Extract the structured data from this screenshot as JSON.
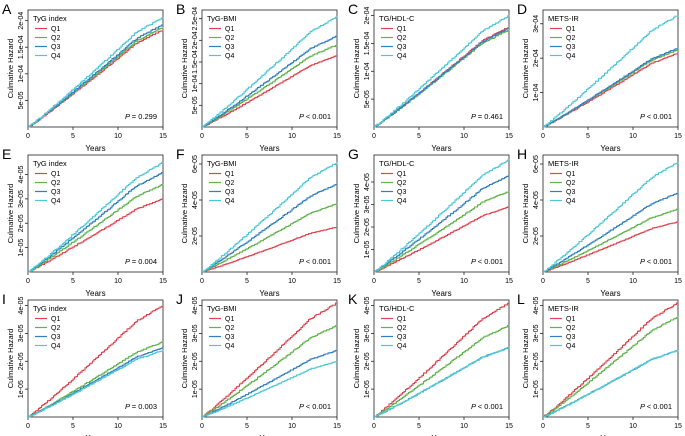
{
  "figure": {
    "x_axis_label": "Years",
    "y_axis_label": "Culmative Hazard",
    "p_prefix": "P"
  },
  "chart_data": [
    {
      "type": "line",
      "panel_label": "A",
      "title": "TyG index",
      "p_text": "= 0.299",
      "xlim": [
        0,
        15
      ],
      "xticks": [
        0,
        5,
        10,
        15
      ],
      "ylim": [
        0,
        0.00022
      ],
      "yticks": [
        "5e-05",
        "1e-04",
        "1.5e-04",
        "2e-04"
      ],
      "ytick_values": [
        5e-05,
        0.0001,
        0.00015,
        0.0002
      ],
      "series": [
        {
          "name": "Q1",
          "color": "#e0434f",
          "final": 0.000183
        },
        {
          "name": "Q2",
          "color": "#5fb34b",
          "final": 0.000188
        },
        {
          "name": "Q3",
          "color": "#2f7fc1",
          "final": 0.000193
        },
        {
          "name": "Q4",
          "color": "#4cc7d6",
          "final": 0.000207
        }
      ]
    },
    {
      "type": "line",
      "panel_label": "B",
      "title": "TyG-BMI",
      "p_text": "< 0.001",
      "xlim": [
        0,
        15
      ],
      "xticks": [
        0,
        5,
        10,
        15
      ],
      "ylim": [
        0,
        0.00027
      ],
      "yticks": [
        "5e-05",
        "1e-04",
        "1.5e-04",
        "2e-04",
        "2.5e-04"
      ],
      "ytick_values": [
        5e-05,
        0.0001,
        0.00015,
        0.0002,
        0.00025
      ],
      "series": [
        {
          "name": "Q1",
          "color": "#e0434f",
          "final": 0.000165
        },
        {
          "name": "Q2",
          "color": "#5fb34b",
          "final": 0.00019
        },
        {
          "name": "Q3",
          "color": "#2f7fc1",
          "final": 0.00021
        },
        {
          "name": "Q4",
          "color": "#4cc7d6",
          "final": 0.000255
        }
      ]
    },
    {
      "type": "line",
      "panel_label": "C",
      "title": "TG/HDL-C",
      "p_text": "= 0.461",
      "xlim": [
        0,
        15
      ],
      "xticks": [
        0,
        5,
        10,
        15
      ],
      "ylim": [
        0,
        0.00021
      ],
      "yticks": [
        "5e-05",
        "1e-04",
        "1.5e-04",
        "2e-04"
      ],
      "ytick_values": [
        5e-05,
        0.0001,
        0.00015,
        0.0002
      ],
      "series": [
        {
          "name": "Q1",
          "color": "#e0434f",
          "final": 0.00018
        },
        {
          "name": "Q2",
          "color": "#5fb34b",
          "final": 0.000175
        },
        {
          "name": "Q3",
          "color": "#2f7fc1",
          "final": 0.000178
        },
        {
          "name": "Q4",
          "color": "#4cc7d6",
          "final": 0.0002
        }
      ]
    },
    {
      "type": "line",
      "panel_label": "D",
      "title": "METS-IR",
      "p_text": "< 0.001",
      "xlim": [
        0,
        15
      ],
      "xticks": [
        0,
        5,
        10,
        15
      ],
      "ylim": [
        0,
        0.00034
      ],
      "yticks": [
        "1e-04",
        "2e-04",
        "3e-04"
      ],
      "ytick_values": [
        0.0001,
        0.0002,
        0.0003
      ],
      "series": [
        {
          "name": "Q1",
          "color": "#e0434f",
          "final": 0.000215
        },
        {
          "name": "Q2",
          "color": "#5fb34b",
          "final": 0.000225
        },
        {
          "name": "Q3",
          "color": "#2f7fc1",
          "final": 0.00023
        },
        {
          "name": "Q4",
          "color": "#4cc7d6",
          "final": 0.000325
        }
      ]
    },
    {
      "type": "line",
      "panel_label": "E",
      "title": "TyG index",
      "p_text": "= 0.004",
      "xlim": [
        0,
        15
      ],
      "xticks": [
        0,
        5,
        10,
        15
      ],
      "ylim": [
        0,
        4.8e-05
      ],
      "yticks": [
        "1e-05",
        "2e-05",
        "3e-05",
        "4e-05"
      ],
      "ytick_values": [
        1e-05,
        2e-05,
        3e-05,
        4e-05
      ],
      "series": [
        {
          "name": "Q1",
          "color": "#e0434f",
          "final": 3e-05
        },
        {
          "name": "Q2",
          "color": "#5fb34b",
          "final": 3.6e-05
        },
        {
          "name": "Q3",
          "color": "#2f7fc1",
          "final": 4.1e-05
        },
        {
          "name": "Q4",
          "color": "#4cc7d6",
          "final": 4.5e-05
        }
      ]
    },
    {
      "type": "line",
      "panel_label": "F",
      "title": "TyG-BMI",
      "p_text": "< 0.001",
      "xlim": [
        0,
        15
      ],
      "xticks": [
        0,
        5,
        10,
        15
      ],
      "ylim": [
        0,
        6.5e-05
      ],
      "yticks": [
        "2e-05",
        "4e-05",
        "6e-05"
      ],
      "ytick_values": [
        2e-05,
        4e-05,
        6e-05
      ],
      "series": [
        {
          "name": "Q1",
          "color": "#e0434f",
          "final": 2.5e-05
        },
        {
          "name": "Q2",
          "color": "#5fb34b",
          "final": 3.8e-05
        },
        {
          "name": "Q3",
          "color": "#2f7fc1",
          "final": 4.9e-05
        },
        {
          "name": "Q4",
          "color": "#4cc7d6",
          "final": 6.1e-05
        }
      ]
    },
    {
      "type": "line",
      "panel_label": "G",
      "title": "TG/HDL-C",
      "p_text": "< 0.001",
      "xlim": [
        0,
        15
      ],
      "xticks": [
        0,
        5,
        10,
        15
      ],
      "ylim": [
        0,
        5.2e-05
      ],
      "yticks": [
        "1e-05",
        "2e-05",
        "3e-05",
        "4e-05"
      ],
      "ytick_values": [
        1e-05,
        2e-05,
        3e-05,
        4e-05
      ],
      "series": [
        {
          "name": "Q1",
          "color": "#e0434f",
          "final": 2.9e-05
        },
        {
          "name": "Q2",
          "color": "#5fb34b",
          "final": 3.6e-05
        },
        {
          "name": "Q3",
          "color": "#2f7fc1",
          "final": 4.3e-05
        },
        {
          "name": "Q4",
          "color": "#4cc7d6",
          "final": 5e-05
        }
      ]
    },
    {
      "type": "line",
      "panel_label": "H",
      "title": "METS-IR",
      "p_text": "< 0.001",
      "xlim": [
        0,
        15
      ],
      "xticks": [
        0,
        5,
        10,
        15
      ],
      "ylim": [
        0,
        6.5e-05
      ],
      "yticks": [
        "2e-05",
        "4e-05",
        "6e-05"
      ],
      "ytick_values": [
        2e-05,
        4e-05,
        6e-05
      ],
      "series": [
        {
          "name": "Q1",
          "color": "#e0434f",
          "final": 2.8e-05
        },
        {
          "name": "Q2",
          "color": "#5fb34b",
          "final": 3.5e-05
        },
        {
          "name": "Q3",
          "color": "#2f7fc1",
          "final": 4.4e-05
        },
        {
          "name": "Q4",
          "color": "#4cc7d6",
          "final": 6.1e-05
        }
      ]
    },
    {
      "type": "line",
      "panel_label": "I",
      "title": "TyG index",
      "p_text": "= 0.003",
      "xlim": [
        0,
        15
      ],
      "xticks": [
        0,
        5,
        10,
        15
      ],
      "ylim": [
        0,
        4.2e-05
      ],
      "yticks": [
        "1e-05",
        "2e-05",
        "3e-05",
        "4e-05"
      ],
      "ytick_values": [
        1e-05,
        2e-05,
        3e-05,
        4e-05
      ],
      "series": [
        {
          "name": "Q1",
          "color": "#e0434f",
          "final": 4e-05
        },
        {
          "name": "Q2",
          "color": "#5fb34b",
          "final": 2.7e-05
        },
        {
          "name": "Q3",
          "color": "#2f7fc1",
          "final": 2.5e-05
        },
        {
          "name": "Q4",
          "color": "#4cc7d6",
          "final": 2.4e-05
        }
      ]
    },
    {
      "type": "line",
      "panel_label": "J",
      "title": "TyG-BMI",
      "p_text": "< 0.001",
      "xlim": [
        0,
        15
      ],
      "xticks": [
        0,
        5,
        10,
        15
      ],
      "ylim": [
        0,
        4.2e-05
      ],
      "yticks": [
        "1e-05",
        "2e-05",
        "3e-05",
        "4e-05"
      ],
      "ytick_values": [
        1e-05,
        2e-05,
        3e-05,
        4e-05
      ],
      "series": [
        {
          "name": "Q1",
          "color": "#e0434f",
          "final": 4.1e-05
        },
        {
          "name": "Q2",
          "color": "#5fb34b",
          "final": 3.3e-05
        },
        {
          "name": "Q3",
          "color": "#2f7fc1",
          "final": 2.4e-05
        },
        {
          "name": "Q4",
          "color": "#4cc7d6",
          "final": 2e-05
        }
      ]
    },
    {
      "type": "line",
      "panel_label": "K",
      "title": "TG/HDL-C",
      "p_text": "< 0.001",
      "xlim": [
        0,
        15
      ],
      "xticks": [
        0,
        5,
        10,
        15
      ],
      "ylim": [
        0,
        4.2e-05
      ],
      "yticks": [
        "1e-05",
        "2e-05",
        "3e-05",
        "4e-05"
      ],
      "ytick_values": [
        1e-05,
        2e-05,
        3e-05,
        4e-05
      ],
      "series": [
        {
          "name": "Q1",
          "color": "#e0434f",
          "final": 4.1e-05
        },
        {
          "name": "Q2",
          "color": "#5fb34b",
          "final": 3.3e-05
        },
        {
          "name": "Q3",
          "color": "#2f7fc1",
          "final": 2.5e-05
        },
        {
          "name": "Q4",
          "color": "#4cc7d6",
          "final": 2.5e-05
        }
      ]
    },
    {
      "type": "line",
      "panel_label": "L",
      "title": "METS-IR",
      "p_text": "< 0.001",
      "xlim": [
        0,
        15
      ],
      "xticks": [
        0,
        5,
        10,
        15
      ],
      "ylim": [
        0,
        4.2e-05
      ],
      "yticks": [
        "1e-05",
        "2e-05",
        "3e-05",
        "4e-05"
      ],
      "ytick_values": [
        1e-05,
        2e-05,
        3e-05,
        4e-05
      ],
      "series": [
        {
          "name": "Q1",
          "color": "#e0434f",
          "final": 4.1e-05
        },
        {
          "name": "Q2",
          "color": "#5fb34b",
          "final": 3.6e-05
        },
        {
          "name": "Q3",
          "color": "#2f7fc1",
          "final": 2.4e-05
        },
        {
          "name": "Q4",
          "color": "#4cc7d6",
          "final": 2.4e-05
        }
      ]
    }
  ]
}
